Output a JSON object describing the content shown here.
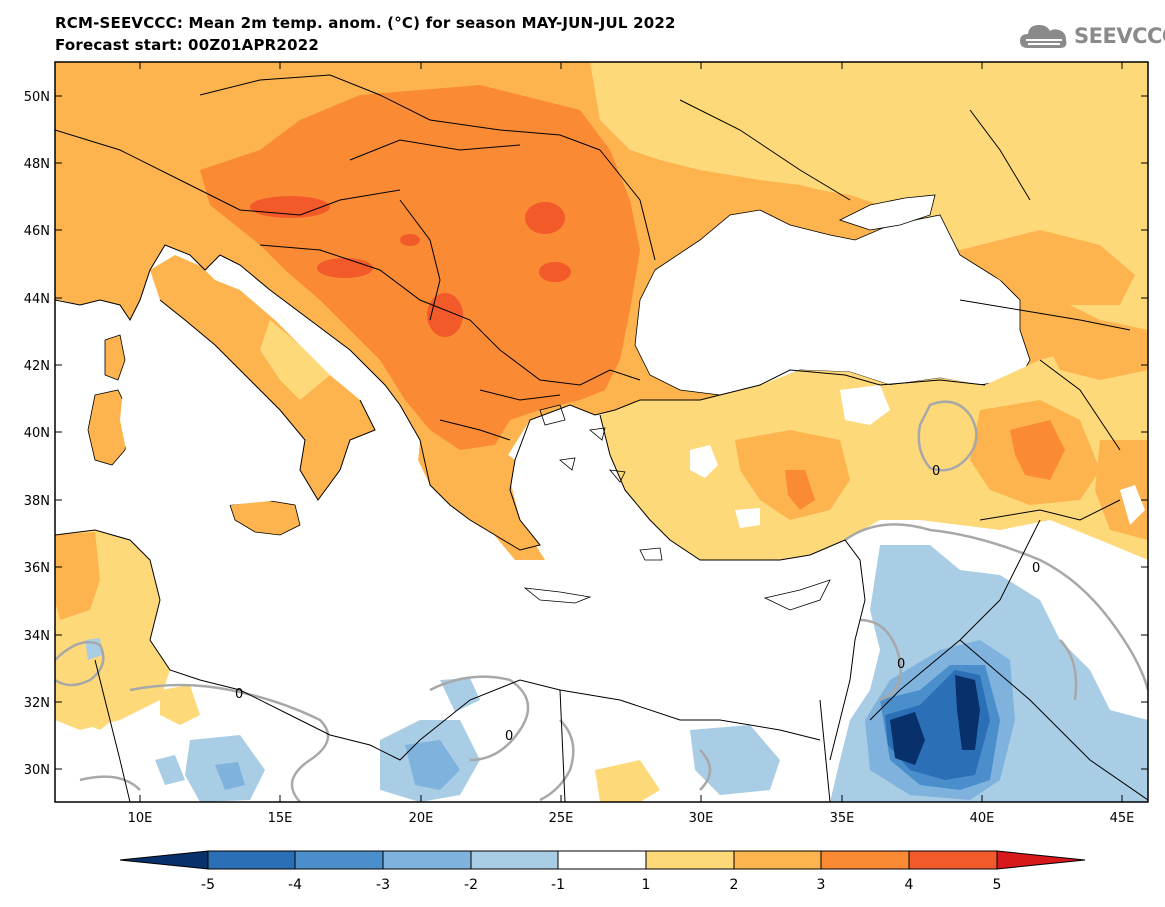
{
  "header": {
    "title_line1": "RCM-SEEVCCC: Mean 2m temp. anom. (°C) for season MAY-JUN-JUL 2022",
    "title_line2": "Forecast start: 00Z01APR2022",
    "logo_text": "SEEVCCC",
    "logo_icon": "cloud-icon"
  },
  "map": {
    "lat_ticks": [
      "50N",
      "48N",
      "46N",
      "44N",
      "42N",
      "40N",
      "38N",
      "36N",
      "34N",
      "32N",
      "30N"
    ],
    "lon_ticks": [
      "10E",
      "15E",
      "20E",
      "25E",
      "30E",
      "35E",
      "40E",
      "45E"
    ],
    "contour_label": "0"
  },
  "colorbar": {
    "labels": [
      "-5",
      "-4",
      "-3",
      "-2",
      "-1",
      "1",
      "2",
      "3",
      "4",
      "5"
    ],
    "colors": [
      "#08306b",
      "#2b6fb6",
      "#4a8fcb",
      "#7fb2dc",
      "#a9cde5",
      "#ffffff",
      "#fdd97a",
      "#fdb44e",
      "#fa8a34",
      "#f25a2a",
      "#d7191c"
    ]
  },
  "palette": {
    "sea": "#ffffff",
    "anom_1_2": "#fdd97a",
    "anom_2_3": "#fdb44e",
    "anom_3_4": "#fa8a34",
    "anom_4_5": "#f25a2a",
    "anom_m1_m2": "#a9cde5",
    "anom_m2_m3": "#7fb2dc",
    "anom_m3_m4": "#4a8fcb",
    "anom_m4_m5": "#2b6fb6",
    "anom_m5": "#08306b"
  }
}
